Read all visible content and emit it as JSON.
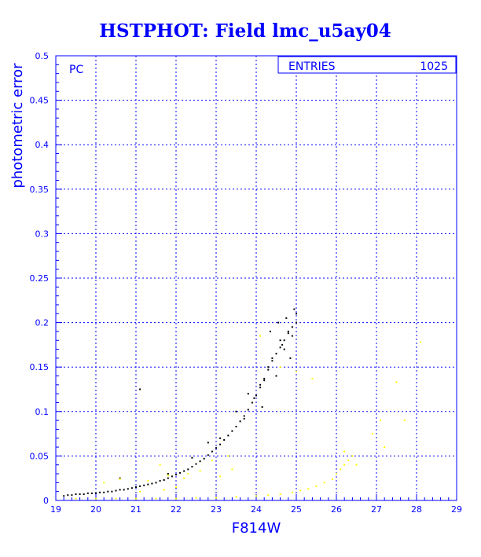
{
  "chart_data": {
    "type": "scatter",
    "title": "HSTPHOT: Field lmc_u5ay04",
    "xlabel": "F814W",
    "ylabel": "photometric error",
    "xlim": [
      19,
      29
    ],
    "ylim": [
      0,
      0.5
    ],
    "x_ticks": [
      "19",
      "20",
      "21",
      "22",
      "23",
      "24",
      "25",
      "26",
      "27",
      "28",
      "29"
    ],
    "y_ticks": [
      "0",
      "0.05",
      "0.1",
      "0.15",
      "0.2",
      "0.25",
      "0.3",
      "0.35",
      "0.4",
      "0.45",
      "0.5"
    ],
    "grid": true,
    "panel_label": "PC",
    "stats_box": {
      "label": "ENTRIES",
      "value": "1025"
    },
    "colors": {
      "axis": "#0000ff",
      "series_black": "#000000",
      "series_yellow": "#ffff00"
    },
    "series": [
      {
        "color": "#000000",
        "x": [
          19.2,
          19.3,
          19.4,
          19.5,
          19.6,
          19.7,
          19.8,
          19.9,
          20.0,
          20.1,
          20.2,
          20.3,
          20.4,
          20.5,
          20.6,
          20.7,
          20.8,
          20.9,
          21.0,
          21.1,
          21.2,
          21.3,
          21.4,
          21.5,
          21.6,
          21.7,
          21.8,
          21.9,
          22.0,
          22.1,
          22.2,
          22.3,
          22.4,
          22.5,
          22.6,
          22.7,
          22.8,
          22.9,
          23.0,
          23.1,
          23.2,
          23.3,
          23.4,
          23.5,
          23.6,
          23.7,
          23.8,
          23.9,
          24.0,
          24.1,
          24.2,
          24.3,
          24.4,
          24.5,
          24.6,
          24.7,
          24.8,
          24.9,
          25.0,
          21.1,
          20.6,
          23.1,
          24.1,
          24.3,
          24.4,
          24.6,
          24.8,
          25.0,
          24.5,
          24.7,
          24.9,
          24.2,
          23.8,
          23.5,
          22.8,
          22.4,
          21.8,
          24.55,
          24.75,
          24.95,
          24.35,
          24.65,
          24.85,
          23.95,
          24.15,
          23.7
        ],
        "y": [
          0.005,
          0.006,
          0.006,
          0.007,
          0.007,
          0.007,
          0.008,
          0.008,
          0.008,
          0.009,
          0.009,
          0.01,
          0.01,
          0.011,
          0.012,
          0.012,
          0.013,
          0.014,
          0.015,
          0.016,
          0.017,
          0.018,
          0.019,
          0.02,
          0.022,
          0.023,
          0.025,
          0.027,
          0.029,
          0.031,
          0.033,
          0.035,
          0.038,
          0.041,
          0.044,
          0.047,
          0.051,
          0.055,
          0.059,
          0.063,
          0.068,
          0.073,
          0.078,
          0.083,
          0.089,
          0.095,
          0.102,
          0.11,
          0.118,
          0.127,
          0.137,
          0.147,
          0.157,
          0.165,
          0.172,
          0.18,
          0.188,
          0.195,
          0.21,
          0.125,
          0.025,
          0.07,
          0.13,
          0.15,
          0.16,
          0.18,
          0.19,
          0.2,
          0.14,
          0.17,
          0.185,
          0.135,
          0.12,
          0.1,
          0.065,
          0.048,
          0.03,
          0.2,
          0.205,
          0.215,
          0.19,
          0.175,
          0.16,
          0.115,
          0.105,
          0.092
        ]
      },
      {
        "color": "#ffff00",
        "x": [
          19.5,
          20.0,
          20.5,
          21.0,
          21.5,
          22.0,
          22.5,
          23.0,
          23.5,
          24.0,
          24.3,
          24.6,
          24.9,
          25.1,
          25.3,
          25.5,
          25.7,
          25.9,
          26.0,
          26.1,
          26.2,
          26.3,
          26.4,
          20.2,
          20.6,
          21.3,
          21.8,
          22.2,
          22.6,
          23.1,
          23.4,
          24.6,
          25.0,
          25.4,
          26.2,
          26.5,
          26.9,
          27.1,
          27.5,
          27.7,
          28.1,
          27.2,
          21.6,
          22.3,
          22.9,
          23.3,
          21.1,
          21.7,
          22.0,
          24.1
        ],
        "y": [
          0.002,
          0.002,
          0.002,
          0.002,
          0.002,
          0.002,
          0.003,
          0.003,
          0.004,
          0.005,
          0.006,
          0.007,
          0.009,
          0.011,
          0.013,
          0.016,
          0.02,
          0.024,
          0.03,
          0.035,
          0.04,
          0.045,
          0.05,
          0.02,
          0.024,
          0.022,
          0.028,
          0.025,
          0.033,
          0.027,
          0.035,
          0.15,
          0.145,
          0.137,
          0.055,
          0.04,
          0.075,
          0.09,
          0.133,
          0.09,
          0.178,
          0.06,
          0.04,
          0.03,
          0.045,
          0.05,
          0.01,
          0.012,
          0.015,
          0.185
        ]
      }
    ]
  }
}
